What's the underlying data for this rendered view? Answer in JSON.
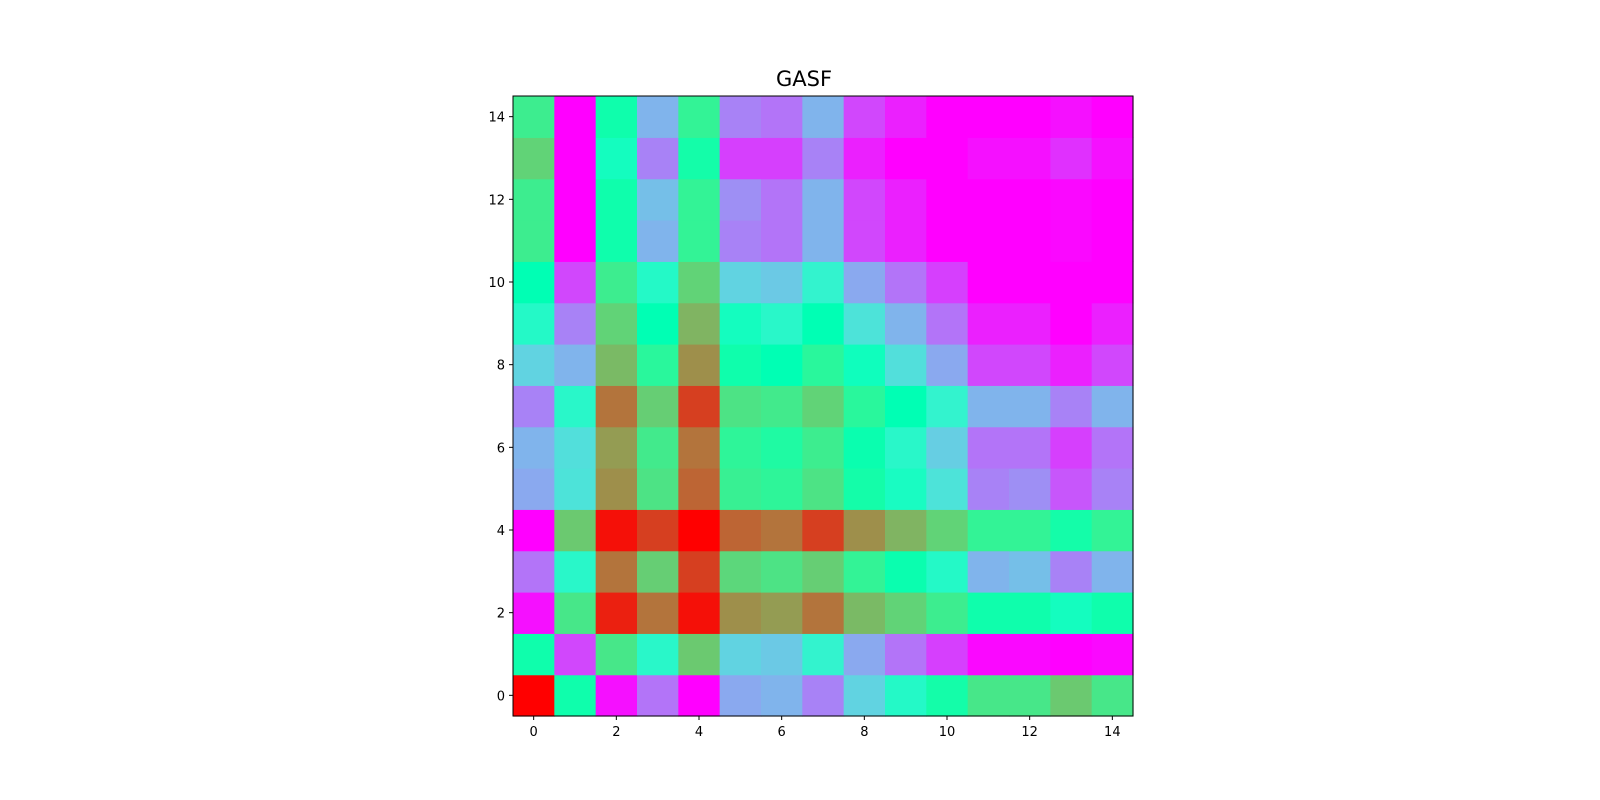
{
  "chart_data": {
    "type": "heatmap",
    "title": "GASF",
    "xlabel": "",
    "ylabel": "",
    "colormap": "rainbow",
    "value_range": [
      -1,
      1
    ],
    "origin": "lower",
    "xlim": [
      -0.5,
      14.5
    ],
    "ylim": [
      -0.5,
      14.5
    ],
    "x_ticks": [
      0,
      2,
      4,
      6,
      8,
      10,
      12,
      14
    ],
    "y_ticks": [
      0,
      2,
      4,
      6,
      8,
      10,
      12,
      14
    ],
    "x_tick_labels": [
      "0",
      "2",
      "4",
      "6",
      "8",
      "10",
      "12",
      "14"
    ],
    "y_tick_labels": [
      "0",
      "2",
      "4",
      "6",
      "8",
      "10",
      "12",
      "14"
    ],
    "grid": false,
    "rows": [
      [
        1.0,
        0.06,
        -0.96,
        -0.7,
        -1.0,
        -0.54,
        -0.5,
        -0.66,
        -0.38,
        -0.14,
        0.08,
        0.28,
        0.28,
        0.42,
        0.28
      ],
      [
        0.06,
        -0.82,
        0.28,
        -0.16,
        0.42,
        -0.38,
        -0.42,
        -0.2,
        -0.54,
        -0.7,
        -0.84,
        -0.98,
        -0.98,
        -1.0,
        -0.98
      ],
      [
        -0.96,
        0.28,
        0.92,
        0.7,
        0.96,
        0.62,
        0.58,
        0.7,
        0.48,
        0.38,
        0.24,
        0.06,
        0.06,
        -0.08,
        0.06
      ],
      [
        -0.7,
        -0.16,
        0.7,
        0.4,
        0.84,
        0.36,
        0.3,
        0.4,
        0.2,
        0.04,
        -0.14,
        -0.5,
        -0.46,
        -0.66,
        -0.5
      ],
      [
        -1.0,
        0.42,
        0.96,
        0.84,
        1.0,
        0.74,
        0.7,
        0.84,
        0.62,
        0.5,
        0.38,
        0.2,
        0.2,
        0.08,
        0.2
      ],
      [
        -0.54,
        -0.3,
        0.62,
        0.3,
        0.74,
        0.22,
        0.18,
        0.3,
        0.08,
        -0.1,
        -0.3,
        -0.66,
        -0.62,
        -0.78,
        -0.66
      ],
      [
        -0.5,
        -0.32,
        0.58,
        0.26,
        0.7,
        0.18,
        0.12,
        0.24,
        0.04,
        -0.16,
        -0.4,
        -0.7,
        -0.7,
        -0.84,
        -0.7
      ],
      [
        -0.66,
        -0.16,
        0.7,
        0.4,
        0.84,
        0.3,
        0.26,
        0.38,
        0.16,
        0.0,
        -0.2,
        -0.5,
        -0.5,
        -0.66,
        -0.5
      ],
      [
        -0.38,
        -0.5,
        0.48,
        0.16,
        0.62,
        0.06,
        0.0,
        0.16,
        -0.06,
        -0.32,
        -0.54,
        -0.82,
        -0.82,
        -0.92,
        -0.82
      ],
      [
        -0.14,
        -0.66,
        0.38,
        0.0,
        0.5,
        -0.08,
        -0.16,
        0.0,
        -0.3,
        -0.5,
        -0.7,
        -0.92,
        -0.92,
        -1.0,
        -0.92
      ],
      [
        0.0,
        -0.82,
        0.24,
        -0.14,
        0.38,
        -0.38,
        -0.42,
        -0.2,
        -0.54,
        -0.7,
        -0.84,
        -1.0,
        -1.0,
        -1.0,
        -1.0
      ],
      [
        0.24,
        -1.0,
        0.06,
        -0.5,
        0.2,
        -0.66,
        -0.7,
        -0.5,
        -0.82,
        -0.92,
        -1.0,
        -1.0,
        -1.0,
        -0.98,
        -1.0
      ],
      [
        0.24,
        -1.0,
        0.06,
        -0.46,
        0.2,
        -0.62,
        -0.7,
        -0.5,
        -0.82,
        -0.92,
        -1.0,
        -1.0,
        -1.0,
        -0.98,
        -1.0
      ],
      [
        0.38,
        -1.0,
        -0.08,
        -0.66,
        0.08,
        -0.84,
        -0.84,
        -0.66,
        -0.92,
        -1.0,
        -1.0,
        -0.96,
        -0.96,
        -0.88,
        -0.96
      ],
      [
        0.24,
        -1.0,
        0.06,
        -0.5,
        0.2,
        -0.66,
        -0.7,
        -0.5,
        -0.82,
        -0.92,
        -1.0,
        -1.0,
        -1.0,
        -0.96,
        -1.0
      ]
    ]
  }
}
